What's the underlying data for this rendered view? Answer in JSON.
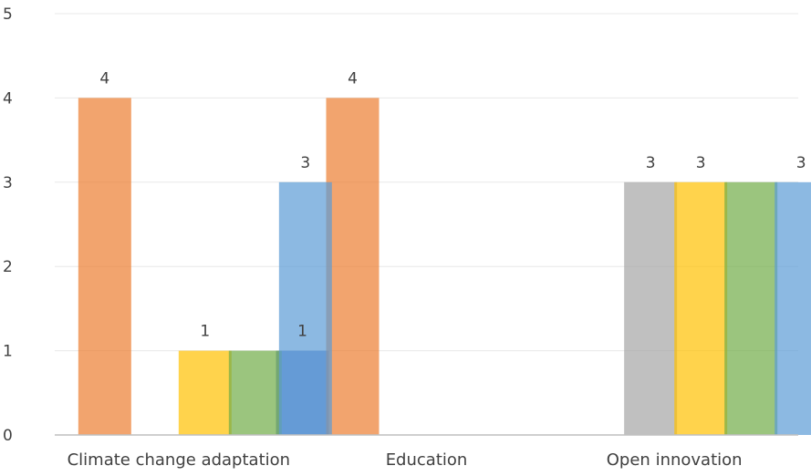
{
  "chart_data": {
    "type": "bar",
    "categories": [
      "Climate change adaptation",
      "Education",
      "Open innovation"
    ],
    "ylim": [
      0,
      5
    ],
    "yticks": [
      "0",
      "1",
      "2",
      "3",
      "4",
      "5"
    ],
    "grid": true,
    "legend": "none",
    "series": [
      {
        "color": "#4472C4",
        "values": [
          null,
          1,
          null
        ]
      },
      {
        "color": "#ED7D31",
        "values": [
          4,
          4,
          null
        ]
      },
      {
        "color": "#A5A5A5",
        "values": [
          null,
          null,
          3
        ]
      },
      {
        "color": "#FFC000",
        "values": [
          1,
          null,
          3
        ]
      },
      {
        "color": "#70AD47",
        "values": [
          1,
          null,
          3
        ]
      },
      {
        "color": "#5B9BD5",
        "values": [
          3,
          null,
          3
        ]
      }
    ],
    "data_labels": [
      {
        "series": 1,
        "category": 0,
        "text": "4"
      },
      {
        "series": 3,
        "category": 0,
        "text": "1"
      },
      {
        "series": 5,
        "category": 0,
        "text": "3"
      },
      {
        "series": 0,
        "category": 1,
        "text": "1"
      },
      {
        "series": 1,
        "category": 1,
        "text": "4"
      },
      {
        "series": 2,
        "category": 2,
        "text": "3"
      },
      {
        "series": 3,
        "category": 2,
        "text": "3"
      },
      {
        "series": 5,
        "category": 2,
        "text": "3"
      }
    ]
  }
}
